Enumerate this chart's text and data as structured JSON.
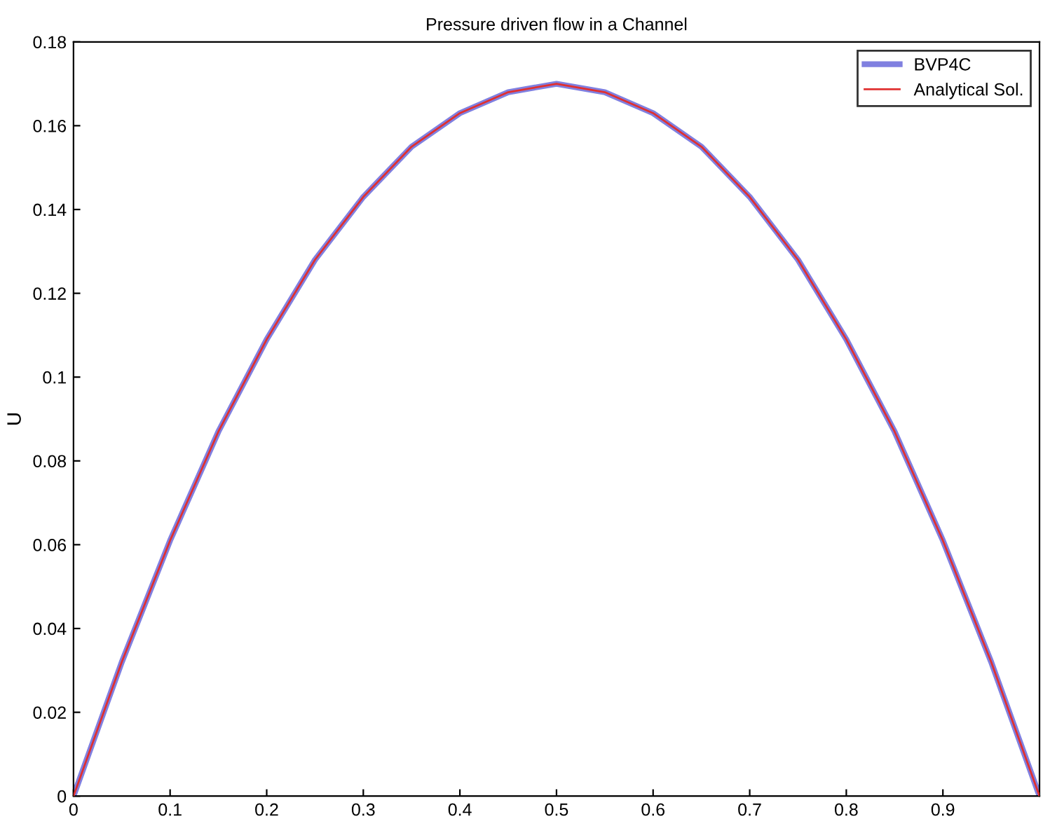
{
  "chart_data": {
    "type": "line",
    "title": "Pressure driven flow in a Channel",
    "ylabel": "U",
    "x": [
      0,
      0.05,
      0.1,
      0.15,
      0.2,
      0.25,
      0.3,
      0.35,
      0.4,
      0.45,
      0.5,
      0.55,
      0.6,
      0.65,
      0.7,
      0.75,
      0.8,
      0.85,
      0.9,
      0.95,
      1
    ],
    "series": [
      {
        "name": "BVP4C",
        "color": "#8080e0",
        "values": [
          0,
          0.032,
          0.061,
          0.087,
          0.109,
          0.128,
          0.143,
          0.155,
          0.163,
          0.168,
          0.17,
          0.168,
          0.163,
          0.155,
          0.143,
          0.128,
          0.109,
          0.087,
          0.061,
          0.032,
          0
        ]
      },
      {
        "name": "Analytical Sol.",
        "color": "#e03030",
        "values": [
          0,
          0.032,
          0.061,
          0.087,
          0.109,
          0.128,
          0.143,
          0.155,
          0.163,
          0.168,
          0.17,
          0.168,
          0.163,
          0.155,
          0.143,
          0.128,
          0.109,
          0.087,
          0.061,
          0.032,
          0
        ]
      }
    ],
    "xlim": [
      0,
      1
    ],
    "xticks": [
      0,
      0.1,
      0.2,
      0.3,
      0.4,
      0.5,
      0.6,
      0.7,
      0.8,
      0.9
    ],
    "ylim": [
      0,
      0.18
    ],
    "yticks": [
      0,
      0.02,
      0.04,
      0.06,
      0.08,
      0.1,
      0.12,
      0.14,
      0.16,
      0.18
    ],
    "legend": "top right",
    "grid": false
  }
}
